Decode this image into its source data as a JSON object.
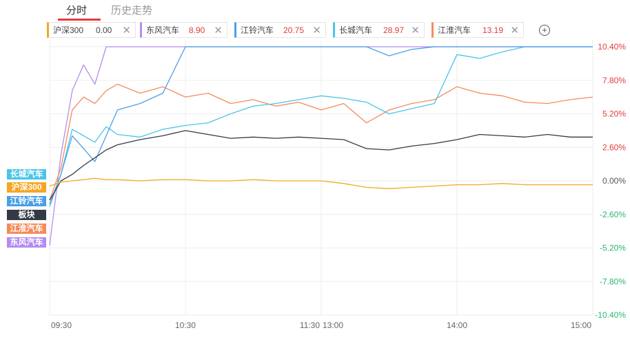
{
  "tabs": [
    {
      "label": "分时"
    },
    {
      "label": "历史走势"
    }
  ],
  "stocks": [
    {
      "name": "沪深300",
      "value": "0.00",
      "color": "#f5a623",
      "value_color": "#444444"
    },
    {
      "name": "东风汽车",
      "value": "8.90",
      "color": "#b48cf0",
      "value_color": "#e03c3c"
    },
    {
      "name": "江铃汽车",
      "value": "20.75",
      "color": "#4a9fe8",
      "value_color": "#e03c3c"
    },
    {
      "name": "长城汽车",
      "value": "28.97",
      "color": "#47c6e8",
      "value_color": "#e03c3c"
    },
    {
      "name": "江淮汽车",
      "value": "13.19",
      "color": "#f58a5a",
      "value_color": "#e03c3c"
    }
  ],
  "add_button": "+",
  "legend": [
    {
      "label": "长城汽车",
      "color": "#47c6e8"
    },
    {
      "label": "沪深300",
      "color": "#f5a623"
    },
    {
      "label": "江铃汽车",
      "color": "#4a9fe8"
    },
    {
      "label": "板块",
      "color": "#333a45"
    },
    {
      "label": "江淮汽车",
      "color": "#f58a5a"
    },
    {
      "label": "东风汽车",
      "color": "#b48cf0"
    }
  ],
  "chart_data": {
    "type": "line",
    "x_tick_labels": [
      "09:30",
      "10:30",
      "11:30",
      "13:00",
      "14:00",
      "15:00"
    ],
    "x": [
      "09:30",
      "09:35",
      "09:40",
      "09:45",
      "09:50",
      "09:55",
      "10:00",
      "10:10",
      "10:20",
      "10:30",
      "10:40",
      "10:50",
      "11:00",
      "11:10",
      "11:20",
      "11:30",
      "13:10",
      "13:20",
      "13:30",
      "13:40",
      "13:50",
      "14:00",
      "14:10",
      "14:20",
      "14:30",
      "14:40",
      "14:50",
      "15:00"
    ],
    "y_tick_labels": [
      "10.40%",
      "7.80%",
      "5.20%",
      "2.60%",
      "0.00%",
      "-2.60%",
      "-5.20%",
      "-7.80%",
      "-10.40%"
    ],
    "ylim": [
      -10.4,
      10.4
    ],
    "grid": true,
    "series": [
      {
        "name": "东风汽车",
        "color": "#b48cf0",
        "values": [
          -5.0,
          2.0,
          7.0,
          9.0,
          7.5,
          10.4,
          10.4,
          10.4,
          10.4,
          10.4,
          10.4,
          10.4,
          10.4,
          10.4,
          10.4,
          10.4,
          10.4,
          10.4,
          10.4,
          10.4,
          10.4,
          10.4,
          10.4,
          10.4,
          10.4,
          10.4,
          10.4,
          10.4
        ]
      },
      {
        "name": "江淮汽车",
        "color": "#f58a5a",
        "values": [
          -1.5,
          1.0,
          5.5,
          6.5,
          6.0,
          7.0,
          7.5,
          6.8,
          7.3,
          6.5,
          6.8,
          6.0,
          6.3,
          5.8,
          6.1,
          5.5,
          6.0,
          4.5,
          5.5,
          6.0,
          6.3,
          7.3,
          6.8,
          6.6,
          6.1,
          6.0,
          6.3,
          6.5
        ]
      },
      {
        "name": "长城汽车",
        "color": "#47c6e8",
        "values": [
          -2.0,
          0.5,
          4.0,
          3.5,
          3.0,
          4.2,
          3.6,
          3.4,
          4.0,
          4.3,
          4.5,
          5.2,
          5.8,
          6.0,
          6.3,
          6.6,
          6.4,
          6.1,
          5.2,
          5.6,
          6.0,
          9.8,
          9.5,
          10.0,
          10.4,
          10.4,
          10.4,
          10.4
        ]
      },
      {
        "name": "江铃汽车",
        "color": "#4a9fe8",
        "values": [
          -1.8,
          0.5,
          3.5,
          2.5,
          1.5,
          3.5,
          5.5,
          6.0,
          6.8,
          10.4,
          10.4,
          10.4,
          10.4,
          10.4,
          10.4,
          10.4,
          10.4,
          10.4,
          9.7,
          10.2,
          10.4,
          10.4,
          10.4,
          10.4,
          10.4,
          10.4,
          10.4,
          10.4
        ]
      },
      {
        "name": "板块",
        "color": "#333a45",
        "values": [
          -1.5,
          0.0,
          0.5,
          1.2,
          1.8,
          2.4,
          2.8,
          3.2,
          3.5,
          3.9,
          3.6,
          3.3,
          3.4,
          3.3,
          3.4,
          3.3,
          3.2,
          2.5,
          2.4,
          2.7,
          2.9,
          3.2,
          3.6,
          3.5,
          3.4,
          3.6,
          3.4,
          3.4
        ]
      },
      {
        "name": "沪深300",
        "color": "#f5a623",
        "values": [
          -0.4,
          -0.1,
          0.0,
          0.1,
          0.2,
          0.1,
          0.1,
          0.0,
          0.1,
          0.1,
          0.0,
          0.0,
          0.1,
          0.0,
          0.0,
          0.0,
          -0.2,
          -0.5,
          -0.6,
          -0.5,
          -0.4,
          -0.3,
          -0.3,
          -0.2,
          -0.3,
          -0.3,
          -0.3,
          -0.3
        ]
      }
    ]
  }
}
